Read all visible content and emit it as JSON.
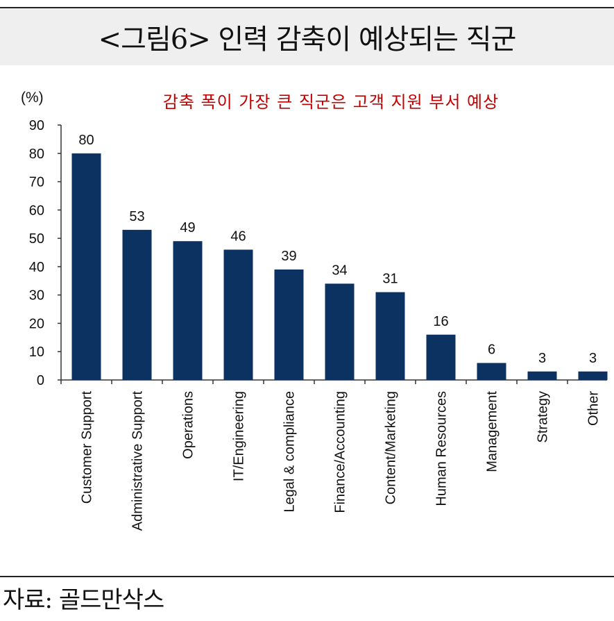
{
  "figure_title": "<그림6> 인력 감축이 예상되는 직군",
  "source": "자료: 골드만삭스",
  "colors": {
    "bar": "#0b3261",
    "annotation": "#c00000"
  },
  "chart_data": {
    "type": "bar",
    "annotation": "감축 폭이 가장 큰 직군은 고객 지원 부서 예상",
    "ylabel": "(%)",
    "xlabel": "",
    "ylim": [
      0,
      90
    ],
    "yticks": [
      0,
      10,
      20,
      30,
      40,
      50,
      60,
      70,
      80,
      90
    ],
    "grid": false,
    "categories": [
      "Customer Support",
      "Administrative Support",
      "Operations",
      "IT/Engineering",
      "Legal & compliance",
      "Finance/Accounting",
      "Content/Marketing",
      "Human Resources",
      "Management",
      "Strategy",
      "Other"
    ],
    "values": [
      80,
      53,
      49,
      46,
      39,
      34,
      31,
      16,
      6,
      3,
      3
    ]
  }
}
